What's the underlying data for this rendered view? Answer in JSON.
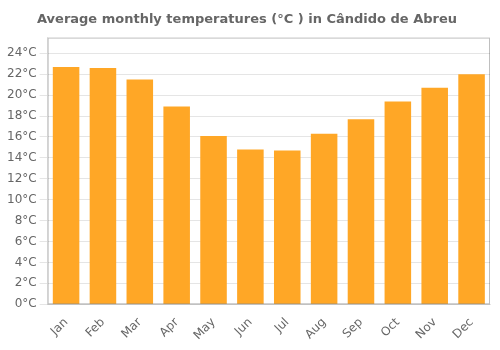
{
  "chart_data": {
    "type": "bar",
    "title": "Average monthly temperatures (°C ) in Cândido de Abreu",
    "categories": [
      "Jan",
      "Feb",
      "Mar",
      "Apr",
      "May",
      "Jun",
      "Jul",
      "Aug",
      "Sep",
      "Oct",
      "Nov",
      "Dec"
    ],
    "values": [
      22.7,
      22.6,
      21.5,
      18.9,
      16.1,
      14.8,
      14.7,
      16.3,
      17.7,
      19.4,
      20.7,
      22.0
    ],
    "color": "#FFA726",
    "ylim": [
      0,
      25.5
    ],
    "yticks": [
      {
        "value": 0,
        "label": "0°C"
      },
      {
        "value": 2,
        "label": "2°C"
      },
      {
        "value": 4,
        "label": "4°C"
      },
      {
        "value": 6,
        "label": "6°C"
      },
      {
        "value": 8,
        "label": "8°C"
      },
      {
        "value": 10,
        "label": "10°C"
      },
      {
        "value": 12,
        "label": "12°C"
      },
      {
        "value": 14,
        "label": "14°C"
      },
      {
        "value": 16,
        "label": "16°C"
      },
      {
        "value": 18,
        "label": "18°C"
      },
      {
        "value": 20,
        "label": "20°C"
      },
      {
        "value": 22,
        "label": "22°C"
      },
      {
        "value": 24,
        "label": "24°C"
      }
    ],
    "grid": true
  }
}
